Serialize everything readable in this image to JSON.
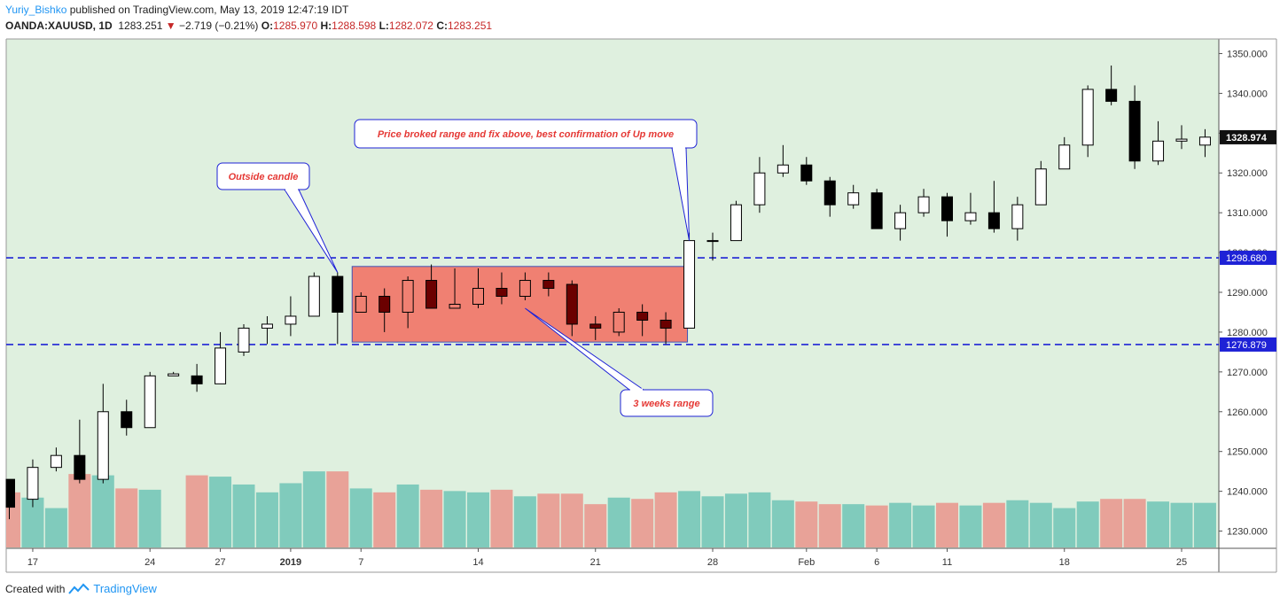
{
  "header": {
    "author": "Yuriy_Bishko",
    "published_text": "published on TradingView.com, May 13, 2019 12:47:19 IDT",
    "symbol": "OANDA:XAUUSD, 1D",
    "last": "1283.251",
    "change": "−2.719 (−0.21%)",
    "o_label": "O:",
    "o": "1285.970",
    "h_label": "H:",
    "h": "1288.598",
    "l_label": "L:",
    "l": "1282.072",
    "c_label": "C:",
    "c": "1283.251"
  },
  "footer": {
    "created_with": "Created with",
    "brand": "TradingView"
  },
  "colors": {
    "background": "#dff0df",
    "range_box": "#f08072",
    "range_border": "#3f51b5",
    "dashed_line": "#1e22d6",
    "vol_up": "#80cbbc",
    "vol_down": "#e8a298",
    "candle_down": "#000000",
    "candle_up": "#ffffff",
    "candle_down_in_range": "#6b0000",
    "annotation_text": "#e53935"
  },
  "chart_data": {
    "type": "candlestick",
    "ylim": [
      1225,
      1353
    ],
    "volume_range": [
      0,
      100
    ],
    "y_ticks": [
      "1230.000",
      "1240.000",
      "1250.000",
      "1260.000",
      "1270.000",
      "1280.000",
      "1290.000",
      "1300.000",
      "1310.000",
      "1320.000",
      "1330.000",
      "1340.000",
      "1350.000"
    ],
    "y_tick_values": [
      1230,
      1240,
      1250,
      1260,
      1270,
      1280,
      1290,
      1300,
      1310,
      1320,
      1330,
      1340,
      1350
    ],
    "x_tick_labels": [
      "17",
      "24",
      "27",
      "2019",
      "7",
      "14",
      "21",
      "28",
      "Feb",
      "6",
      "11",
      "18",
      "25"
    ],
    "x_tick_index": [
      1,
      6,
      9,
      12,
      15,
      20,
      25,
      30,
      34,
      37,
      40,
      45,
      50
    ],
    "candles": [
      {
        "o": 1243,
        "h": 1243,
        "l": 1233,
        "c": 1236,
        "v": 42
      },
      {
        "o": 1238,
        "h": 1248,
        "l": 1236,
        "c": 1246,
        "v": 38
      },
      {
        "o": 1246,
        "h": 1251,
        "l": 1245,
        "c": 1249,
        "v": 30
      },
      {
        "o": 1249,
        "h": 1258,
        "l": 1242,
        "c": 1243,
        "v": 56
      },
      {
        "o": 1243,
        "h": 1267,
        "l": 1242,
        "c": 1260,
        "v": 55
      },
      {
        "o": 1260,
        "h": 1263,
        "l": 1254,
        "c": 1256,
        "v": 45
      },
      {
        "o": 1256,
        "h": 1270,
        "l": 1256,
        "c": 1269,
        "v": 44
      },
      {
        "o": 1269,
        "h": 1270,
        "l": 1269,
        "c": 1269.5,
        "v": 0
      },
      {
        "o": 1269,
        "h": 1272,
        "l": 1265,
        "c": 1267,
        "v": 55
      },
      {
        "o": 1267,
        "h": 1280,
        "l": 1267,
        "c": 1276,
        "v": 54
      },
      {
        "o": 1275,
        "h": 1282,
        "l": 1274,
        "c": 1281,
        "v": 48
      },
      {
        "o": 1281,
        "h": 1284,
        "l": 1277,
        "c": 1282,
        "v": 42
      },
      {
        "o": 1282,
        "h": 1289,
        "l": 1279,
        "c": 1284,
        "v": 49
      },
      {
        "o": 1284,
        "h": 1295,
        "l": 1284,
        "c": 1294,
        "v": 58
      },
      {
        "o": 1294,
        "h": 1295,
        "l": 1277,
        "c": 1285,
        "v": 58
      },
      {
        "o": 1285,
        "h": 1290,
        "l": 1285,
        "c": 1289,
        "v": 45
      },
      {
        "o": 1289,
        "h": 1291,
        "l": 1280,
        "c": 1285,
        "v": 42
      },
      {
        "o": 1285,
        "h": 1294,
        "l": 1281,
        "c": 1293,
        "v": 48
      },
      {
        "o": 1293,
        "h": 1297,
        "l": 1287,
        "c": 1286,
        "v": 44
      },
      {
        "o": 1286,
        "h": 1296,
        "l": 1286,
        "c": 1287,
        "v": 43
      },
      {
        "o": 1287,
        "h": 1296,
        "l": 1286,
        "c": 1291,
        "v": 42
      },
      {
        "o": 1291,
        "h": 1295,
        "l": 1287,
        "c": 1289,
        "v": 44
      },
      {
        "o": 1289,
        "h": 1295,
        "l": 1288,
        "c": 1293,
        "v": 39
      },
      {
        "o": 1293,
        "h": 1295,
        "l": 1289,
        "c": 1291,
        "v": 41
      },
      {
        "o": 1292,
        "h": 1293,
        "l": 1279,
        "c": 1282,
        "v": 41
      },
      {
        "o": 1282,
        "h": 1284,
        "l": 1278,
        "c": 1281,
        "v": 33
      },
      {
        "o": 1280,
        "h": 1286,
        "l": 1279,
        "c": 1285,
        "v": 38
      },
      {
        "o": 1285,
        "h": 1287,
        "l": 1279,
        "c": 1283,
        "v": 37
      },
      {
        "o": 1283,
        "h": 1285,
        "l": 1277,
        "c": 1281,
        "v": 42
      },
      {
        "o": 1281,
        "h": 1305,
        "l": 1281,
        "c": 1303,
        "v": 43
      },
      {
        "o": 1303,
        "h": 1305,
        "l": 1298,
        "c": 1303,
        "v": 39
      },
      {
        "o": 1303,
        "h": 1313,
        "l": 1303,
        "c": 1312,
        "v": 41
      },
      {
        "o": 1312,
        "h": 1324,
        "l": 1310,
        "c": 1320,
        "v": 42
      },
      {
        "o": 1320,
        "h": 1327,
        "l": 1319,
        "c": 1322,
        "v": 36
      },
      {
        "o": 1322,
        "h": 1324,
        "l": 1317,
        "c": 1318,
        "v": 35
      },
      {
        "o": 1318,
        "h": 1319,
        "l": 1309,
        "c": 1312,
        "v": 33
      },
      {
        "o": 1312,
        "h": 1317,
        "l": 1311,
        "c": 1315,
        "v": 33
      },
      {
        "o": 1315,
        "h": 1316,
        "l": 1306,
        "c": 1306,
        "v": 32
      },
      {
        "o": 1306,
        "h": 1312,
        "l": 1303,
        "c": 1310,
        "v": 34
      },
      {
        "o": 1310,
        "h": 1316,
        "l": 1309,
        "c": 1314,
        "v": 32
      },
      {
        "o": 1314,
        "h": 1315,
        "l": 1304,
        "c": 1308,
        "v": 34
      },
      {
        "o": 1308,
        "h": 1315,
        "l": 1307,
        "c": 1310,
        "v": 32
      },
      {
        "o": 1310,
        "h": 1318,
        "l": 1305,
        "c": 1306,
        "v": 34
      },
      {
        "o": 1306,
        "h": 1314,
        "l": 1303,
        "c": 1312,
        "v": 36
      },
      {
        "o": 1312,
        "h": 1323,
        "l": 1312,
        "c": 1321,
        "v": 34
      },
      {
        "o": 1321,
        "h": 1329,
        "l": 1321,
        "c": 1327,
        "v": 30
      },
      {
        "o": 1327,
        "h": 1342,
        "l": 1324,
        "c": 1341,
        "v": 35
      },
      {
        "o": 1341,
        "h": 1347,
        "l": 1337,
        "c": 1338,
        "v": 37
      },
      {
        "o": 1338,
        "h": 1342,
        "l": 1321,
        "c": 1323,
        "v": 37
      },
      {
        "o": 1323,
        "h": 1333,
        "l": 1322,
        "c": 1328,
        "v": 35
      },
      {
        "o": 1328,
        "h": 1332,
        "l": 1326,
        "c": 1328.5,
        "v": 34
      },
      {
        "o": 1327,
        "h": 1331,
        "l": 1324,
        "c": 1329,
        "v": 34
      }
    ],
    "levels": [
      {
        "value": 1298.68,
        "label": "1298.680"
      },
      {
        "value": 1276.879,
        "label": "1276.879"
      }
    ],
    "current_price_label": "1328.974",
    "current_price": 1328.974,
    "range_box": {
      "from_index": 15,
      "to_index": 29,
      "low": 1277.5,
      "high": 1296.5
    },
    "annotations": [
      {
        "id": "outside",
        "text": "Outside candle",
        "anchor": [
          14,
          1295
        ],
        "box_pos": [
          297,
          199
        ]
      },
      {
        "id": "breakout",
        "text": "Price broked range and fix above, best confirmation of Up move",
        "anchor": [
          29,
          1303
        ],
        "box_pos": [
          593,
          151
        ]
      },
      {
        "id": "range",
        "text": "3 weeks range",
        "anchor": [
          22,
          1286
        ],
        "box_pos": [
          752,
          455
        ]
      }
    ]
  }
}
